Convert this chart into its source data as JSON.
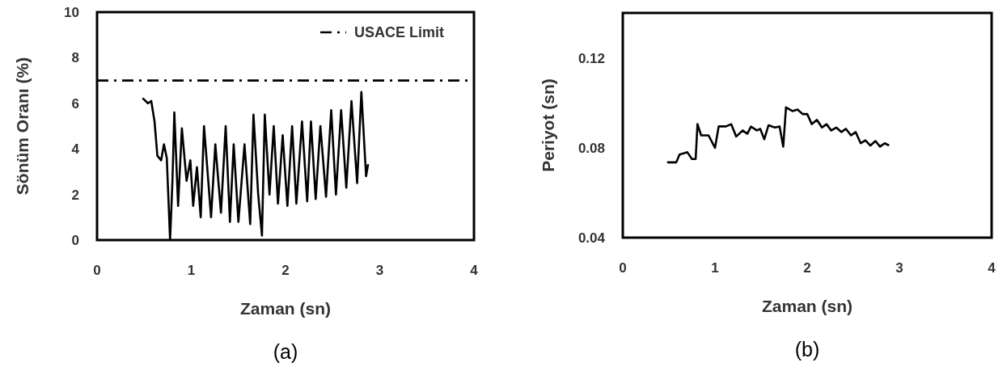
{
  "chart_data": [
    {
      "type": "line",
      "xlabel": "Zaman (sn)",
      "ylabel": "Sönüm Oranı (%)",
      "annotations": [
        "(a)"
      ],
      "xlim": [
        0,
        4
      ],
      "xticks": [
        0,
        1,
        2,
        3,
        4
      ],
      "ylim": [
        0,
        10
      ],
      "yticks": [
        0,
        2,
        4,
        6,
        8,
        10
      ],
      "grid": false,
      "legend": "top right",
      "marker": "none",
      "line_style": "solid",
      "ref_lines": [
        {
          "axis": "y",
          "value": 7,
          "label": "USACE Limit",
          "color": "#000000",
          "line_style": "dashed"
        }
      ],
      "series": [
        {
          "color": "#000000",
          "x": [
            0.49,
            0.54,
            0.575,
            0.61,
            0.64,
            0.68,
            0.71,
            0.74,
            0.775,
            0.8,
            0.82,
            0.86,
            0.9,
            0.95,
            0.99,
            1.02,
            1.06,
            1.1,
            1.135,
            1.18,
            1.21,
            1.255,
            1.315,
            1.365,
            1.41,
            1.45,
            1.5,
            1.565,
            1.625,
            1.66,
            1.71,
            1.75,
            1.78,
            1.83,
            1.875,
            1.92,
            1.97,
            2.02,
            2.07,
            2.115,
            2.175,
            2.23,
            2.27,
            2.32,
            2.37,
            2.43,
            2.485,
            2.535,
            2.59,
            2.645,
            2.7,
            2.76,
            2.805,
            2.855,
            2.875
          ],
          "values": [
            6.2,
            6.0,
            6.1,
            5.2,
            3.7,
            3.5,
            4.2,
            3.6,
            0,
            2.6,
            5.6,
            1.5,
            4.9,
            2.6,
            3.5,
            1.5,
            3.2,
            1.0,
            5.0,
            2.6,
            1.0,
            4.2,
            1.2,
            5.0,
            0.8,
            4.2,
            0.8,
            4.2,
            0.7,
            5.5,
            2.0,
            0.2,
            5.5,
            2.0,
            5.0,
            1.6,
            4.6,
            1.5,
            5.0,
            1.6,
            5.2,
            1.7,
            5.2,
            1.8,
            5.0,
            1.9,
            5.7,
            2.0,
            5.7,
            2.3,
            6.1,
            2.5,
            6.5,
            2.8,
            3.3
          ]
        }
      ]
    },
    {
      "type": "line",
      "xlabel": "Zaman (sn)",
      "ylabel": "Periyot (sn)",
      "annotations": [
        "(b)"
      ],
      "xlim": [
        0,
        4
      ],
      "xticks": [
        0,
        1,
        2,
        3,
        4
      ],
      "ylim": [
        0.04,
        0.14
      ],
      "yticks": [
        0.04,
        0.08,
        0.12
      ],
      "grid": false,
      "marker": "none",
      "line_style": "solid",
      "series": [
        {
          "color": "#000000",
          "x": [
            0.49,
            0.58,
            0.615,
            0.7,
            0.75,
            0.79,
            0.81,
            0.85,
            0.93,
            1.0,
            1.04,
            1.12,
            1.175,
            1.23,
            1.3,
            1.35,
            1.39,
            1.455,
            1.49,
            1.535,
            1.58,
            1.65,
            1.7,
            1.74,
            1.77,
            1.84,
            1.895,
            1.95,
            2.0,
            2.05,
            2.105,
            2.16,
            2.21,
            2.26,
            2.315,
            2.37,
            2.42,
            2.475,
            2.525,
            2.58,
            2.63,
            2.685,
            2.74,
            2.79,
            2.84,
            2.88
          ],
          "values": [
            0.0735,
            0.0735,
            0.077,
            0.078,
            0.075,
            0.075,
            0.0905,
            0.0855,
            0.0855,
            0.08,
            0.0895,
            0.0895,
            0.0905,
            0.085,
            0.0877,
            0.0862,
            0.0894,
            0.0877,
            0.0884,
            0.0838,
            0.09,
            0.089,
            0.0895,
            0.0805,
            0.098,
            0.0963,
            0.097,
            0.095,
            0.095,
            0.0905,
            0.0924,
            0.089,
            0.0905,
            0.0877,
            0.089,
            0.087,
            0.0884,
            0.0855,
            0.087,
            0.082,
            0.0833,
            0.081,
            0.083,
            0.0805,
            0.082,
            0.0812
          ]
        }
      ]
    }
  ]
}
